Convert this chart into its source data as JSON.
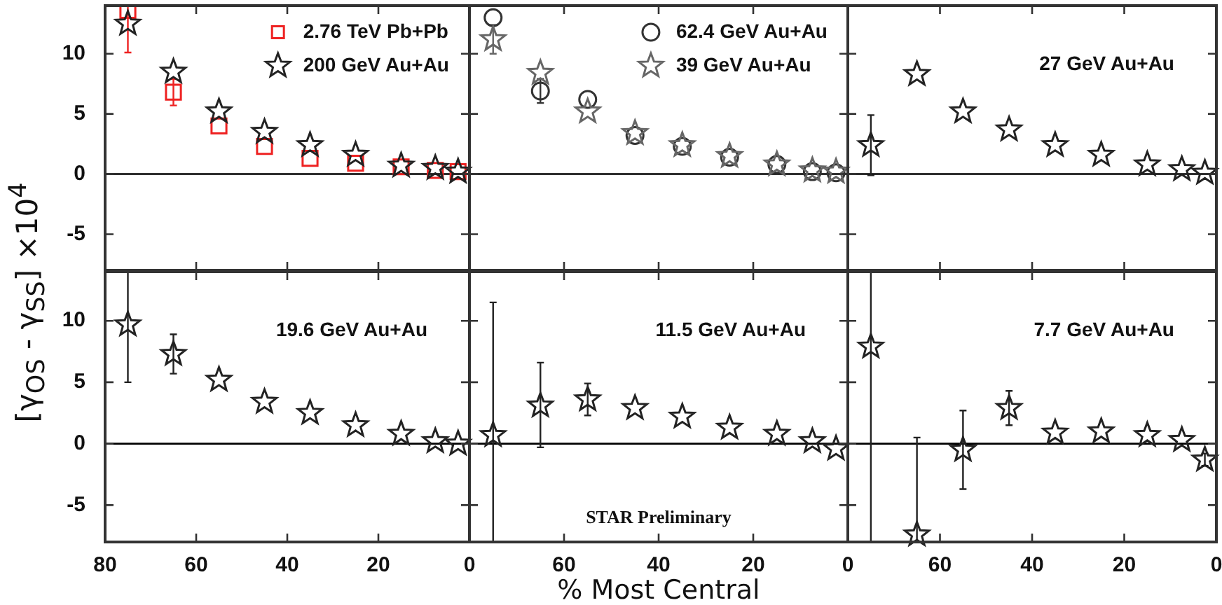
{
  "chart_data": [
    {
      "type": "scatter",
      "ylabel": "[γ$_{OS}$ - γ$_{SS}$] ×10$^{4}$",
      "x": [
        75,
        65,
        55,
        45,
        35,
        25,
        15,
        7.5,
        2.5
      ],
      "xlim": [
        80,
        0
      ],
      "xticks": [
        80,
        60,
        40,
        20,
        0
      ],
      "ylim": [
        -8,
        14
      ],
      "yticks": [
        -5,
        0,
        5,
        10
      ],
      "tick_labels": "y",
      "legend": "top right",
      "ref_lines": [
        {
          "axis": "y",
          "value": 0,
          "color": "#000000"
        }
      ],
      "series": [
        {
          "name": "2.76 TeV Pb+Pb",
          "color": "#ee2222",
          "marker": "square",
          "values": [
            13.6,
            6.8,
            4.0,
            2.3,
            1.3,
            0.9,
            0.6,
            0.3,
            0.2
          ],
          "errors": [
            [
              10.1,
              14
            ],
            1.1,
            null,
            null,
            null,
            null,
            null,
            null,
            null
          ]
        },
        {
          "name": "200 GeV Au+Au",
          "color": "#222222",
          "marker": "star",
          "values": [
            12.5,
            8.5,
            5.2,
            3.5,
            2.4,
            1.6,
            0.7,
            0.5,
            0.2
          ]
        }
      ]
    },
    {
      "type": "scatter",
      "x": [
        75,
        65,
        55,
        45,
        35,
        25,
        15,
        7.5,
        2.5
      ],
      "xlim": [
        80,
        0
      ],
      "xticks": [
        80,
        60,
        40,
        20,
        0
      ],
      "ylim": [
        -8,
        14
      ],
      "yticks": [
        -5,
        0,
        5,
        10
      ],
      "tick_labels": false,
      "legend": "top right",
      "ref_lines": [
        {
          "axis": "y",
          "value": 0,
          "color": "#000000"
        }
      ],
      "series": [
        {
          "name": "62.4 GeV Au+Au",
          "color": "#333333",
          "marker": "circle",
          "values": [
            13.0,
            6.9,
            6.2,
            3.2,
            2.3,
            1.4,
            0.8,
            0.2,
            0.1
          ],
          "errors": [
            null,
            1.0,
            null,
            null,
            null,
            null,
            null,
            null,
            null
          ]
        },
        {
          "name": "39 GeV Au+Au",
          "color": "#666666",
          "marker": "star",
          "values": [
            11.2,
            8.4,
            5.2,
            3.4,
            2.4,
            1.5,
            0.8,
            0.3,
            0.2
          ],
          "errors": [
            1.2,
            null,
            null,
            null,
            null,
            null,
            null,
            null,
            null
          ]
        }
      ]
    },
    {
      "type": "scatter",
      "annotations": [
        "27 GeV Au+Au"
      ],
      "x": [
        75,
        65,
        55,
        45,
        35,
        25,
        15,
        7.5,
        2.5
      ],
      "xlim": [
        80,
        0
      ],
      "xticks": [
        80,
        60,
        40,
        20,
        0
      ],
      "ylim": [
        -8,
        14
      ],
      "yticks": [
        -5,
        0,
        5,
        10
      ],
      "tick_labels": false,
      "ref_lines": [
        {
          "axis": "y",
          "value": 0,
          "color": "#000000"
        }
      ],
      "series": [
        {
          "color": "#222222",
          "marker": "star",
          "values": [
            2.4,
            8.3,
            5.2,
            3.7,
            2.4,
            1.6,
            0.8,
            0.4,
            0.1
          ],
          "errors": [
            2.5,
            null,
            null,
            null,
            null,
            null,
            null,
            null,
            null
          ]
        }
      ]
    },
    {
      "type": "scatter",
      "annotations": [
        "19.6 GeV Au+Au"
      ],
      "x": [
        75,
        65,
        55,
        45,
        35,
        25,
        15,
        7.5,
        2.5
      ],
      "xlim": [
        80,
        0
      ],
      "xticks": [
        80,
        60,
        40,
        20,
        0
      ],
      "ylim": [
        -8,
        14
      ],
      "yticks": [
        -5,
        0,
        5,
        10
      ],
      "ref_lines": [
        {
          "axis": "y",
          "value": 0,
          "color": "#000000"
        }
      ],
      "series": [
        {
          "color": "#222222",
          "marker": "star",
          "values": [
            9.7,
            7.3,
            5.2,
            3.4,
            2.5,
            1.5,
            0.8,
            0.2,
            0.0
          ],
          "errors": [
            [
              5,
              14
            ],
            1.6,
            null,
            null,
            null,
            null,
            null,
            null,
            null
          ]
        }
      ]
    },
    {
      "type": "scatter",
      "xlabel": "% Most Central",
      "annotations": [
        "11.5 GeV Au+Au",
        "STAR Preliminary"
      ],
      "x": [
        75,
        65,
        55,
        45,
        35,
        25,
        15,
        7.5,
        2.5
      ],
      "xlim": [
        80,
        0
      ],
      "xticks": [
        {
          "value": 80,
          "label": null
        },
        60,
        40,
        20,
        0
      ],
      "ylim": [
        -8,
        14
      ],
      "yticks": [
        -5,
        0,
        5,
        10
      ],
      "tick_labels": "x",
      "ref_lines": [
        {
          "axis": "y",
          "value": 0,
          "color": "#000000"
        }
      ],
      "series": [
        {
          "color": "#222222",
          "marker": "star",
          "values": [
            0.7,
            3.1,
            3.6,
            2.9,
            2.2,
            1.3,
            0.8,
            0.2,
            -0.4
          ],
          "errors": [
            [
              -8,
              11.5
            ],
            [
              -0.3,
              6.6
            ],
            1.3,
            null,
            null,
            null,
            null,
            null,
            null
          ]
        }
      ]
    },
    {
      "type": "scatter",
      "annotations": [
        "7.7 GeV Au+Au"
      ],
      "x": [
        75,
        65,
        55,
        45,
        35,
        25,
        15,
        7.5,
        2.5
      ],
      "xlim": [
        80,
        0
      ],
      "xticks": [
        {
          "value": 80,
          "label": null
        },
        60,
        40,
        20,
        0
      ],
      "ylim": [
        -8,
        14
      ],
      "yticks": [
        -5,
        0,
        5,
        10
      ],
      "tick_labels": "x",
      "ref_lines": [
        {
          "axis": "y",
          "value": 0,
          "color": "#000000"
        }
      ],
      "series": [
        {
          "color": "#222222",
          "marker": "star",
          "values": [
            7.9,
            -7.4,
            -0.5,
            2.9,
            0.9,
            1.0,
            0.7,
            0.3,
            -1.3
          ],
          "errors": [
            [
              -8,
              14
            ],
            [
              -8,
              0.5
            ],
            3.2,
            1.4,
            null,
            null,
            null,
            null,
            0.5
          ]
        }
      ]
    }
  ]
}
